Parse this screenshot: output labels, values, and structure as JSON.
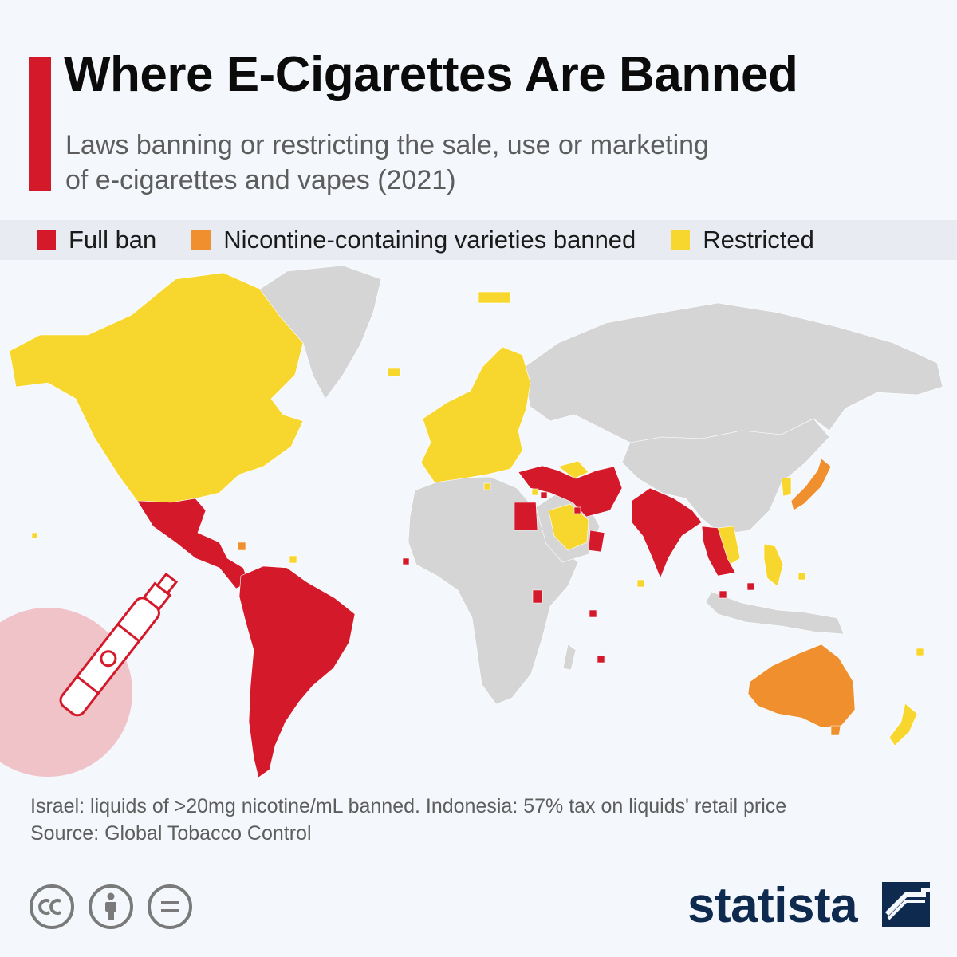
{
  "header": {
    "title": "Where E-Cigarettes Are Banned",
    "subtitle": "Laws banning or restricting the sale, use or marketing of e-cigarettes and vapes (2021)"
  },
  "colors": {
    "full_ban": "#d3192a",
    "nicotine_banned": "#ef8f2d",
    "restricted": "#f7d72e",
    "no_data": "#d5d5d5",
    "accent": "#d3192a",
    "brand": "#0f2a4f"
  },
  "legend": [
    {
      "label": "Full ban",
      "category": "full_ban"
    },
    {
      "label": "Nicontine-containing varieties banned",
      "category": "nicotine_banned"
    },
    {
      "label": "Restricted",
      "category": "restricted"
    }
  ],
  "footer": {
    "note": "Israel: liquids of >20mg nicotine/mL banned. Indonesia: 57% tax on liquids' retail price",
    "source": "Source: Global Tobacco Control",
    "brand": "statista"
  },
  "icons": [
    "cc-icon",
    "attribution-icon",
    "no-derivatives-icon",
    "e-cigarette-icon",
    "statista-logo-icon"
  ]
}
